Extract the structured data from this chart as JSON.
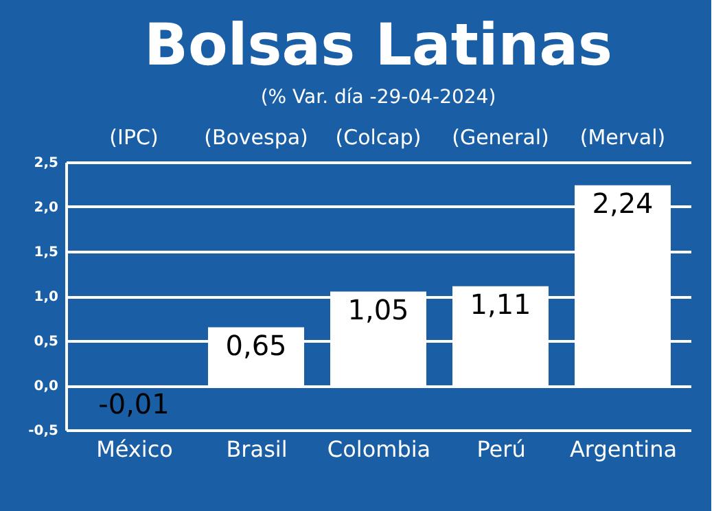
{
  "chart_data": {
    "type": "bar",
    "title": "Bolsas Latinas",
    "subtitle": "(% Var. día -29-04-2024)",
    "categories": [
      "México",
      "Brasil",
      "Colombia",
      "Perú",
      "Argentina"
    ],
    "values": [
      -0.01,
      0.65,
      1.05,
      1.11,
      2.24
    ],
    "color": "#ffffff",
    "value_labels": [
      "-0,01",
      "0,65",
      "1,05",
      "1,11",
      "2,24"
    ],
    "annotations": [
      "(IPC)",
      "(Bovespa)",
      "(Colcap)",
      "(General)",
      "(Merval)"
    ],
    "ylim": [
      -0.5,
      2.5
    ],
    "yticks": [
      {
        "value": -0.5,
        "label": "-0,5"
      },
      {
        "value": 0,
        "label": "0,0"
      },
      {
        "value": 0.5,
        "label": "0,5"
      },
      {
        "value": 1,
        "label": "1,0"
      },
      {
        "value": 1.5,
        "label": "1,5"
      },
      {
        "value": 2,
        "label": "2,0"
      },
      {
        "value": 2.5,
        "label": "2,5"
      }
    ],
    "grid": "y"
  }
}
